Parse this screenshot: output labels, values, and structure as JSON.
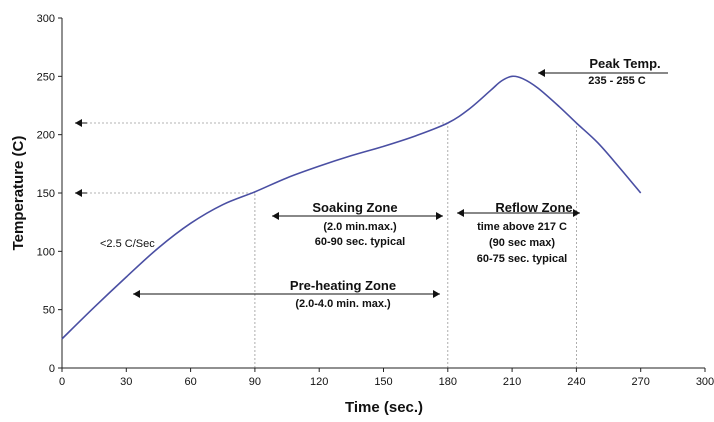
{
  "chart_data": {
    "type": "line",
    "title": "",
    "xlabel": "Time (sec.)",
    "ylabel": "Temperature (C)",
    "xlim": [
      0,
      300
    ],
    "ylim": [
      0,
      300
    ],
    "x_ticks": [
      0,
      30,
      60,
      90,
      120,
      150,
      180,
      210,
      240,
      270,
      300
    ],
    "y_ticks": [
      0,
      50,
      100,
      150,
      200,
      250,
      300
    ],
    "grid": false,
    "series": [
      {
        "name": "",
        "color": "#4a4fa3",
        "points": [
          [
            0,
            25
          ],
          [
            15,
            52
          ],
          [
            30,
            78
          ],
          [
            45,
            103
          ],
          [
            60,
            124
          ],
          [
            75,
            140
          ],
          [
            90,
            151
          ],
          [
            105,
            163
          ],
          [
            120,
            173
          ],
          [
            135,
            182
          ],
          [
            150,
            190
          ],
          [
            165,
            199
          ],
          [
            180,
            210
          ],
          [
            190,
            222
          ],
          [
            200,
            238
          ],
          [
            205,
            246
          ],
          [
            210,
            250
          ],
          [
            215,
            248
          ],
          [
            222,
            240
          ],
          [
            232,
            224
          ],
          [
            240,
            210
          ],
          [
            250,
            193
          ],
          [
            260,
            172
          ],
          [
            270,
            150
          ]
        ]
      }
    ],
    "reference_lines": {
      "vertical_x": [
        90,
        180,
        240
      ],
      "horizontal_y": [
        150,
        210
      ]
    },
    "annotations": {
      "peak": {
        "title": "Peak Temp.",
        "range": "235 - 255 C"
      },
      "ramp": "<2.5 C/Sec",
      "soaking": {
        "title": "Soaking Zone",
        "line1": "(2.0 min.max.)",
        "line2": "60-90 sec. typical"
      },
      "reflow": {
        "title": "Reflow Zone",
        "line1": "time above 217 C",
        "line2": "(90 sec max)",
        "line3": "60-75 sec. typical"
      },
      "preheat": {
        "title": "Pre-heating Zone",
        "line1": "(2.0-4.0 min. max.)"
      }
    }
  }
}
